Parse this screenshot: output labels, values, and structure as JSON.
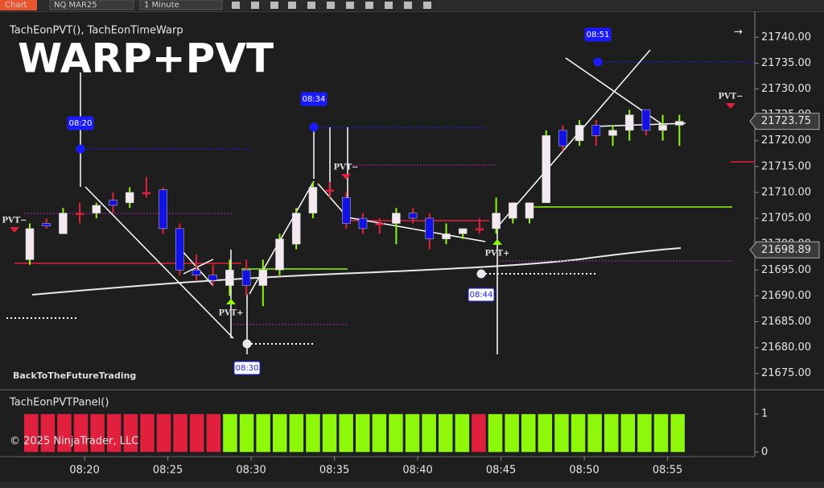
{
  "toolbar": {
    "tab": "Chart",
    "instrument": "NQ MAR25",
    "interval": "1 Minute"
  },
  "indicators": {
    "main": "TachEonPVT(), TachEonTimeWarp",
    "overlay_title": "WARP+PVT",
    "watermark": "BackToTheFutureTrading",
    "panel": "TachEonPVTPanel()",
    "copyright": "© 2025 NinjaTrader, LLC"
  },
  "chart_data": {
    "type": "candlestick",
    "categories": [
      null,
      null,
      null,
      "08:20",
      null,
      null,
      null,
      null,
      "08:25",
      null,
      null,
      null,
      null,
      "08:30",
      null,
      null,
      null,
      null,
      "08:35",
      null,
      null,
      null,
      null,
      "08:40",
      null,
      null,
      null,
      null,
      "08:45",
      null,
      null,
      null,
      null,
      "08:50",
      null,
      null,
      null,
      null,
      "08:55",
      null
    ],
    "open": [
      21697,
      21704,
      21702,
      21706,
      21706,
      21708.5,
      21708,
      21710,
      21710.5,
      21703,
      21695,
      21694,
      21692,
      21695,
      21692,
      21695,
      21700,
      21706,
      21710.5,
      21709,
      21705,
      21704,
      21704,
      21706,
      21705,
      21701,
      21702,
      21703,
      21703,
      21705,
      21705,
      21708,
      21722,
      21720,
      21723,
      21721,
      21722,
      21726,
      21722,
      21723
    ],
    "high": [
      21704,
      21705,
      21707,
      21708,
      21708,
      21710,
      21711,
      21713,
      21711,
      21704,
      21698,
      21696,
      21697,
      21697,
      21697,
      21702,
      21707,
      21712,
      21712,
      21710,
      21706,
      21705,
      21707,
      21707,
      21706,
      21704,
      21703,
      21705,
      21709,
      21708,
      21708,
      21722,
      21723,
      21724,
      21724,
      21723,
      21726,
      21726,
      21725,
      21725
    ],
    "low": [
      21696,
      21703,
      21702,
      21704,
      21705,
      21706,
      21707,
      21709,
      21702,
      21694,
      21693,
      21692,
      21690,
      21690,
      21688,
      21694,
      21699,
      21705,
      21709,
      21703,
      21702,
      21702,
      21700,
      21704,
      21699,
      21700,
      21701,
      21702,
      21702,
      21704,
      21704,
      21708,
      21718,
      21719,
      21719,
      21719,
      21720,
      21721,
      21720,
      21719
    ],
    "close": [
      21703,
      21703.5,
      21706,
      21706,
      21707.5,
      21707.5,
      21710,
      21710,
      21703,
      21695,
      21694,
      21693,
      21695,
      21692,
      21695,
      21701,
      21706,
      21711,
      21710.5,
      21704,
      21703,
      21704,
      21706,
      21705,
      21701,
      21702,
      21703,
      21703,
      21706,
      21708,
      21708,
      21721,
      21719,
      21723,
      21721,
      21722,
      21725,
      21722,
      21723,
      21723.75
    ],
    "up_color": "#f3e9f1",
    "down_color": "#1212e6",
    "doji_color": "#e0203c",
    "ylim": [
      21672,
      21743
    ],
    "yticks": [
      {
        "value": 21675,
        "label": "21675.00"
      },
      {
        "value": 21680,
        "label": "21680.00"
      },
      {
        "value": 21685,
        "label": "21685.00"
      },
      {
        "value": 21690,
        "label": "21690.00"
      },
      {
        "value": 21695,
        "label": "21695.00"
      },
      {
        "value": 21700,
        "label": "21700.00"
      },
      {
        "value": 21705,
        "label": "21705.00"
      },
      {
        "value": 21710,
        "label": "21710.00"
      },
      {
        "value": 21715,
        "label": "21715.00"
      },
      {
        "value": 21720,
        "label": "21720.00"
      },
      {
        "value": 21725,
        "label": "21725.00"
      },
      {
        "value": 21730,
        "label": "21730.00"
      },
      {
        "value": 21735,
        "label": "21735.00"
      },
      {
        "value": 21740,
        "label": "21740.00"
      }
    ],
    "price_flags": [
      21723.75,
      21698.89
    ],
    "time_markers": [
      "08:20",
      "08:34",
      "08:51",
      "08:30",
      "08:44"
    ],
    "pvt_labels": [
      "PVT−",
      "PVT−",
      "PVT+",
      "PVT+",
      "PVT−"
    ]
  },
  "panel_data": {
    "type": "bar",
    "values": [
      1,
      1,
      1,
      1,
      1,
      1,
      1,
      1,
      1,
      1,
      1,
      1,
      1,
      1,
      1,
      1,
      1,
      1,
      1,
      1,
      1,
      1,
      1,
      1,
      1,
      1,
      1,
      1,
      1,
      1,
      1,
      1,
      1,
      1,
      1,
      1,
      1,
      1,
      1,
      1
    ],
    "colors": [
      "#e0203c",
      "#e0203c",
      "#e0203c",
      "#e0203c",
      "#e0203c",
      "#e0203c",
      "#e0203c",
      "#e0203c",
      "#e0203c",
      "#e0203c",
      "#e0203c",
      "#e0203c",
      "#8ef80a",
      "#8ef80a",
      "#8ef80a",
      "#8ef80a",
      "#8ef80a",
      "#8ef80a",
      "#8ef80a",
      "#8ef80a",
      "#8ef80a",
      "#8ef80a",
      "#8ef80a",
      "#8ef80a",
      "#8ef80a",
      "#8ef80a",
      "#8ef80a",
      "#e0203c",
      "#8ef80a",
      "#8ef80a",
      "#8ef80a",
      "#8ef80a",
      "#8ef80a",
      "#8ef80a",
      "#8ef80a",
      "#8ef80a",
      "#8ef80a",
      "#8ef80a",
      "#8ef80a",
      "#8ef80a"
    ],
    "ylim": [
      -0.1,
      1.6
    ],
    "yticks": [
      0,
      1
    ]
  }
}
